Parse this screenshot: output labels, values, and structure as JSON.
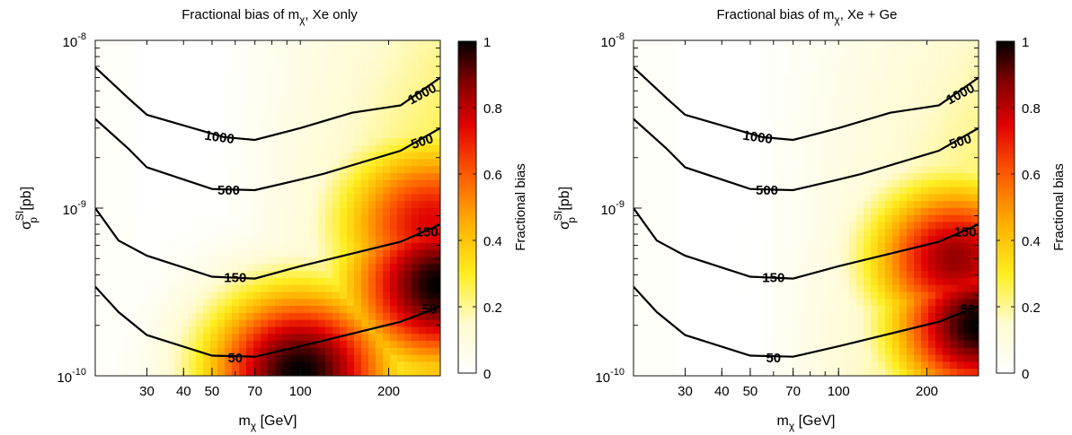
{
  "chart_data": [
    {
      "type": "heatmap",
      "title": "Fractional bias of mχ, Xe only",
      "title_main": "Fractional bias of m",
      "title_sub": "χ",
      "title_tail": ", Xe only",
      "xlabel_main": "m",
      "xlabel_sub": "χ",
      "xlabel_tail": " [GeV]",
      "ylabel_main": "σ",
      "ylabel_sup": "SI",
      "ylabel_sub": "p",
      "ylabel_tail": " [pb]",
      "x_scale": "log",
      "y_scale": "log",
      "xlim": [
        20,
        300
      ],
      "ylim": [
        1e-10,
        1e-08
      ],
      "x_ticks": [
        30,
        40,
        50,
        70,
        100,
        200
      ],
      "y_ticks": [
        {
          "value": 1e-10,
          "base": "10",
          "exp": "-10"
        },
        {
          "value": 1e-09,
          "base": "10",
          "exp": "-9"
        },
        {
          "value": 1e-08,
          "base": "10",
          "exp": "-8"
        }
      ],
      "colorbar": {
        "label": "Fractional bias",
        "range": [
          0,
          1
        ],
        "ticks": [
          "0",
          "0.2",
          "0.4",
          "0.6",
          "0.8",
          "1"
        ]
      },
      "contour_series": [
        {
          "label": "1000",
          "x": [
            20,
            26,
            30,
            55,
            70,
            100,
            150,
            220,
            300
          ],
          "y": [
            6.9e-09,
            4.5e-09,
            3.6e-09,
            2.65e-09,
            2.55e-09,
            3e-09,
            3.7e-09,
            4.1e-09,
            6e-09
          ]
        },
        {
          "label": "500",
          "x": [
            20,
            26,
            30,
            50,
            70,
            100,
            120,
            220,
            300
          ],
          "y": [
            3.4e-09,
            2.25e-09,
            1.75e-09,
            1.3e-09,
            1.28e-09,
            1.48e-09,
            1.6e-09,
            2.2e-09,
            3e-09
          ]
        },
        {
          "label": "150",
          "x": [
            20,
            24,
            30,
            50,
            70,
            100,
            220,
            300
          ],
          "y": [
            1e-09,
            6.4e-10,
            5.2e-10,
            3.9e-10,
            3.8e-10,
            4.5e-10,
            6.3e-10,
            8e-10
          ]
        },
        {
          "label": "50",
          "x": [
            20,
            24,
            30,
            50,
            70,
            100,
            220,
            300
          ],
          "y": [
            3.4e-10,
            2.4e-10,
            1.75e-10,
            1.32e-10,
            1.3e-10,
            1.5e-10,
            2.1e-10,
            2.6e-10
          ]
        }
      ],
      "contour_labels": [
        {
          "text": "1000",
          "x": 53,
          "y": 2.65e-09,
          "angle": 8
        },
        {
          "text": "1000",
          "x": 260,
          "y": 4.8e-09,
          "angle": -28
        },
        {
          "text": "500",
          "x": 57,
          "y": 1.28e-09,
          "angle": 0
        },
        {
          "text": "500",
          "x": 260,
          "y": 2.5e-09,
          "angle": -18
        },
        {
          "text": "150",
          "x": 60,
          "y": 3.85e-10,
          "angle": 0
        },
        {
          "text": "150",
          "x": 270,
          "y": 7.2e-10,
          "angle": 0
        },
        {
          "text": "50",
          "x": 60,
          "y": 1.28e-10,
          "angle": 0
        },
        {
          "text": "50",
          "x": 275,
          "y": 2.5e-10,
          "angle": 0
        }
      ],
      "bias_peaks": [
        {
          "x": 100,
          "y": 1.05e-10,
          "value": 1.0
        },
        {
          "x": 300,
          "y": 3.5e-10,
          "value": 1.0
        },
        {
          "x": 280,
          "y": 8e-10,
          "value": 0.75
        }
      ]
    },
    {
      "type": "heatmap",
      "title": "Fractional bias of mχ, Xe + Ge",
      "title_main": "Fractional bias of m",
      "title_sub": "χ",
      "title_tail": ", Xe + Ge",
      "xlabel_main": "m",
      "xlabel_sub": "χ",
      "xlabel_tail": " [GeV]",
      "ylabel_main": "σ",
      "ylabel_sup": "SI",
      "ylabel_sub": "p",
      "ylabel_tail": " [pb]",
      "x_scale": "log",
      "y_scale": "log",
      "xlim": [
        20,
        300
      ],
      "ylim": [
        1e-10,
        1e-08
      ],
      "x_ticks": [
        30,
        40,
        50,
        70,
        100,
        200
      ],
      "y_ticks": [
        {
          "value": 1e-10,
          "base": "10",
          "exp": "-10"
        },
        {
          "value": 1e-09,
          "base": "10",
          "exp": "-9"
        },
        {
          "value": 1e-08,
          "base": "10",
          "exp": "-8"
        }
      ],
      "colorbar": {
        "label": "Fractional bias",
        "range": [
          0,
          1
        ],
        "ticks": [
          "0",
          "0.2",
          "0.4",
          "0.6",
          "0.8",
          "1"
        ]
      },
      "contour_series": [
        {
          "label": "1000",
          "x": [
            20,
            26,
            30,
            55,
            70,
            100,
            150,
            220,
            300
          ],
          "y": [
            6.9e-09,
            4.5e-09,
            3.6e-09,
            2.65e-09,
            2.55e-09,
            3e-09,
            3.7e-09,
            4.1e-09,
            6e-09
          ]
        },
        {
          "label": "500",
          "x": [
            20,
            26,
            30,
            50,
            70,
            100,
            120,
            220,
            300
          ],
          "y": [
            3.4e-09,
            2.25e-09,
            1.75e-09,
            1.3e-09,
            1.28e-09,
            1.48e-09,
            1.6e-09,
            2.2e-09,
            3e-09
          ]
        },
        {
          "label": "150",
          "x": [
            20,
            24,
            30,
            50,
            70,
            100,
            220,
            300
          ],
          "y": [
            1e-09,
            6.4e-10,
            5.2e-10,
            3.9e-10,
            3.8e-10,
            4.5e-10,
            6.3e-10,
            8e-10
          ]
        },
        {
          "label": "50",
          "x": [
            20,
            24,
            30,
            50,
            70,
            100,
            220,
            300
          ],
          "y": [
            3.4e-10,
            2.4e-10,
            1.75e-10,
            1.32e-10,
            1.3e-10,
            1.5e-10,
            2.1e-10,
            2.6e-10
          ]
        }
      ],
      "contour_labels": [
        {
          "text": "1000",
          "x": 53,
          "y": 2.65e-09,
          "angle": 8
        },
        {
          "text": "1000",
          "x": 260,
          "y": 4.8e-09,
          "angle": -28
        },
        {
          "text": "500",
          "x": 57,
          "y": 1.28e-09,
          "angle": 0
        },
        {
          "text": "500",
          "x": 260,
          "y": 2.5e-09,
          "angle": -18
        },
        {
          "text": "150",
          "x": 60,
          "y": 3.85e-10,
          "angle": 0
        },
        {
          "text": "150",
          "x": 270,
          "y": 7.2e-10,
          "angle": 0
        },
        {
          "text": "50",
          "x": 60,
          "y": 1.28e-10,
          "angle": 0
        },
        {
          "text": "50",
          "x": 275,
          "y": 2.5e-10,
          "angle": 0
        }
      ],
      "bias_peaks": [
        {
          "x": 300,
          "y": 2e-10,
          "value": 1.0
        },
        {
          "x": 250,
          "y": 5e-10,
          "value": 0.85
        }
      ]
    }
  ]
}
